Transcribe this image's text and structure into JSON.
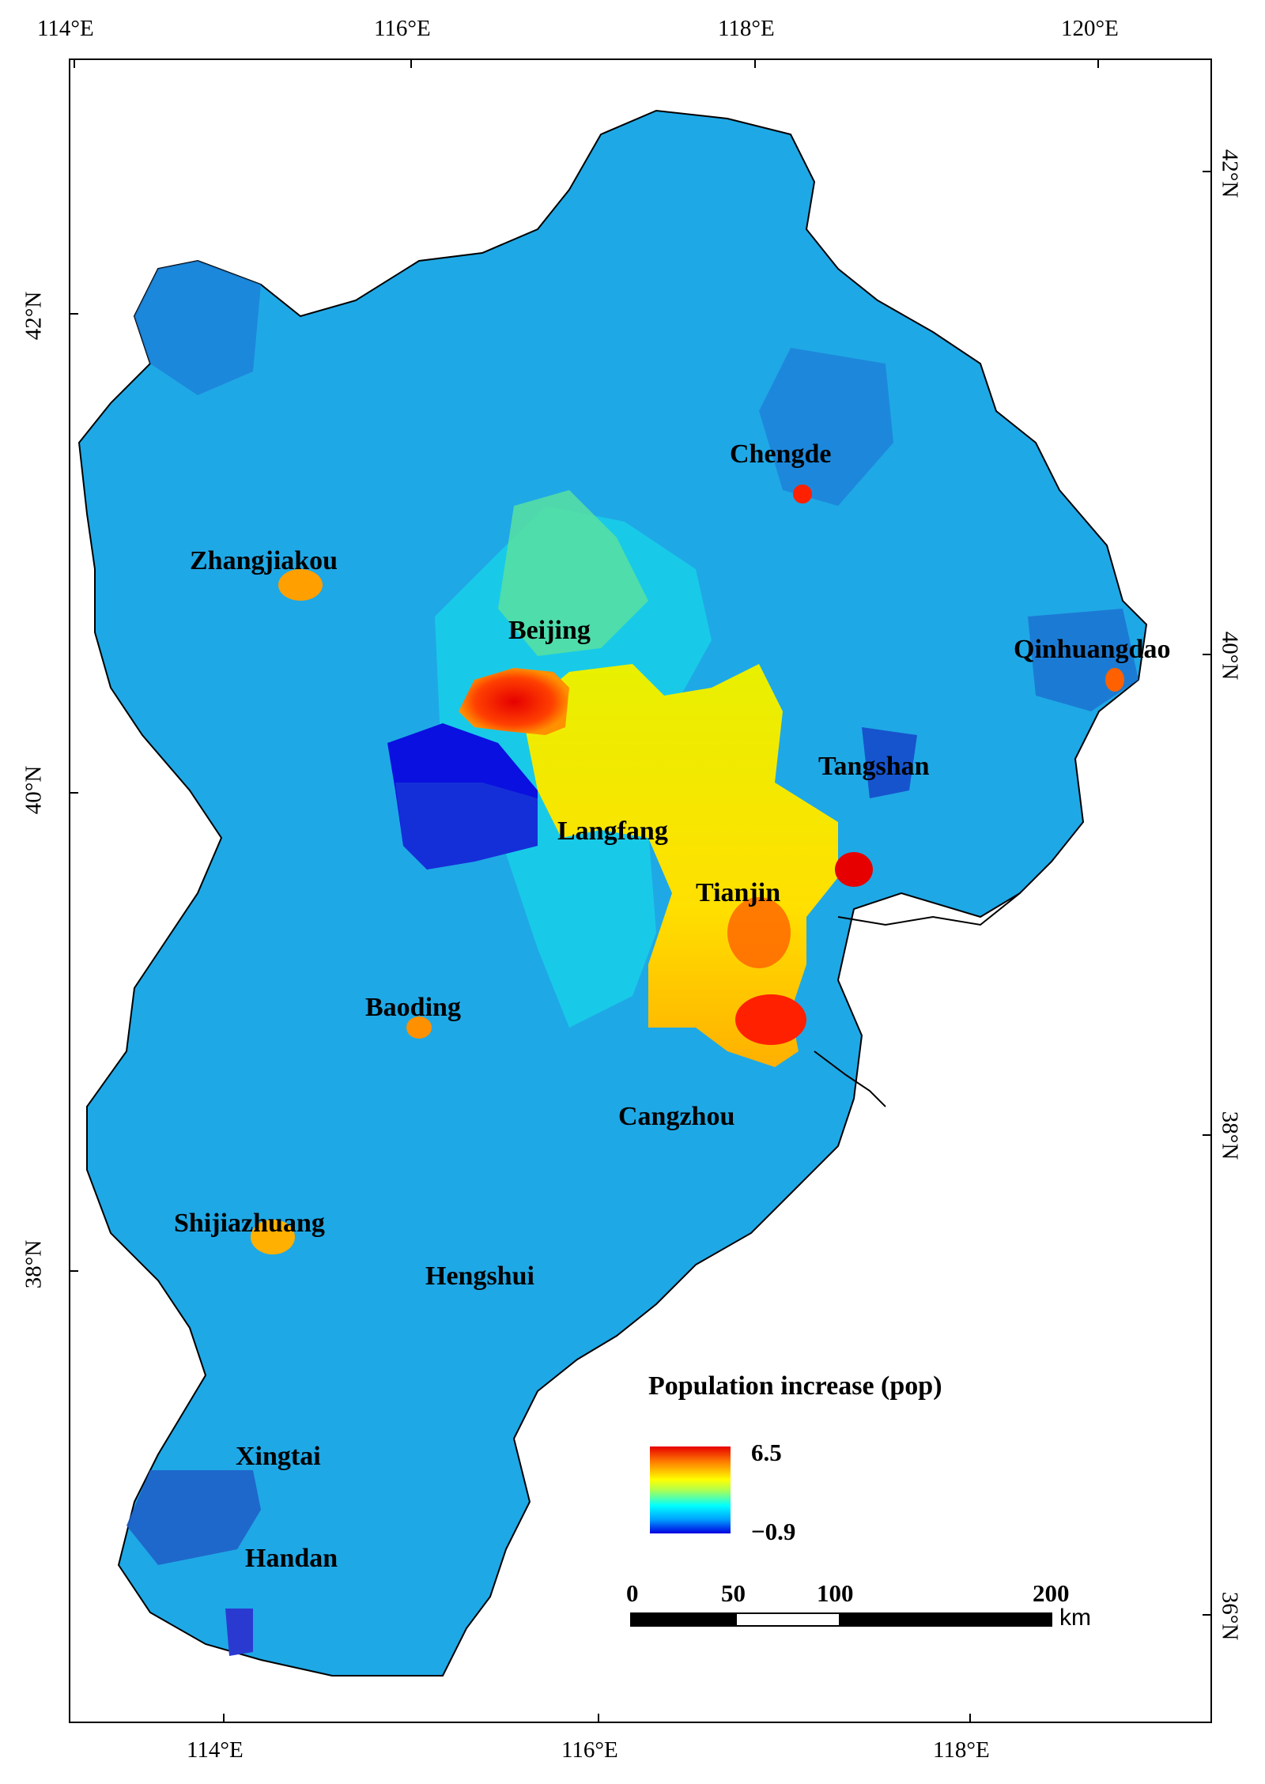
{
  "map": {
    "top_lon_labels": [
      "114°E",
      "116°E",
      "118°E",
      "120°E"
    ],
    "bottom_lon_labels": [
      "114°E",
      "116°E",
      "118°E"
    ],
    "left_lat_labels": [
      "42°N",
      "40°N",
      "38°N"
    ],
    "right_lat_labels": [
      "42°N",
      "40°N",
      "38°N",
      "36°N"
    ],
    "cities": [
      {
        "name": "Chengde"
      },
      {
        "name": "Zhangjiakou"
      },
      {
        "name": "Beijing"
      },
      {
        "name": "Qinhuangdao"
      },
      {
        "name": "Tangshan"
      },
      {
        "name": "Langfang"
      },
      {
        "name": "Tianjin"
      },
      {
        "name": "Baoding"
      },
      {
        "name": "Cangzhou"
      },
      {
        "name": "Shijiazhuang"
      },
      {
        "name": "Hengshui"
      },
      {
        "name": "Xingtai"
      },
      {
        "name": "Handan"
      }
    ],
    "colors": {
      "background_fill": "#1fa8e6",
      "high": "#e60000",
      "mid": "#ffff00",
      "low": "#0000e0"
    }
  },
  "legend": {
    "title": "Population increase (pop)",
    "max_label": "6.5",
    "min_label": "−0.9"
  },
  "scale_bar": {
    "ticks": [
      "0",
      "50",
      "100",
      "200"
    ],
    "unit": "km"
  }
}
